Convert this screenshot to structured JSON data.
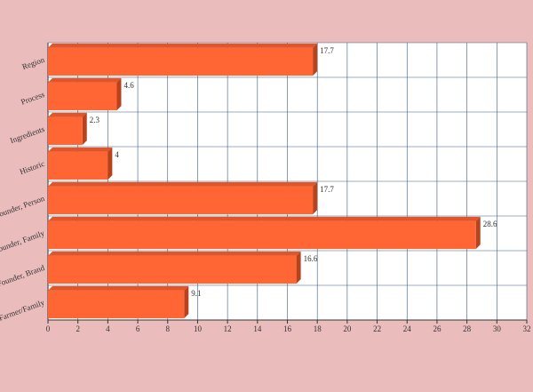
{
  "chart_data": {
    "type": "bar",
    "orientation": "horizontal",
    "categories": [
      "Region",
      "Process",
      "Ingredients",
      "Historic",
      "Founder, Person",
      "Founder, Family",
      "Founder, Brand",
      "Farmer/Family"
    ],
    "values": [
      17.7,
      4.6,
      2.3,
      4,
      17.7,
      28.6,
      16.6,
      9.1
    ],
    "color": "#ff6633",
    "xlim": [
      0,
      32
    ],
    "xticks": [
      0,
      2,
      4,
      6,
      8,
      10,
      12,
      14,
      16,
      18,
      20,
      22,
      24,
      26,
      28,
      30,
      32
    ],
    "grid": true
  }
}
